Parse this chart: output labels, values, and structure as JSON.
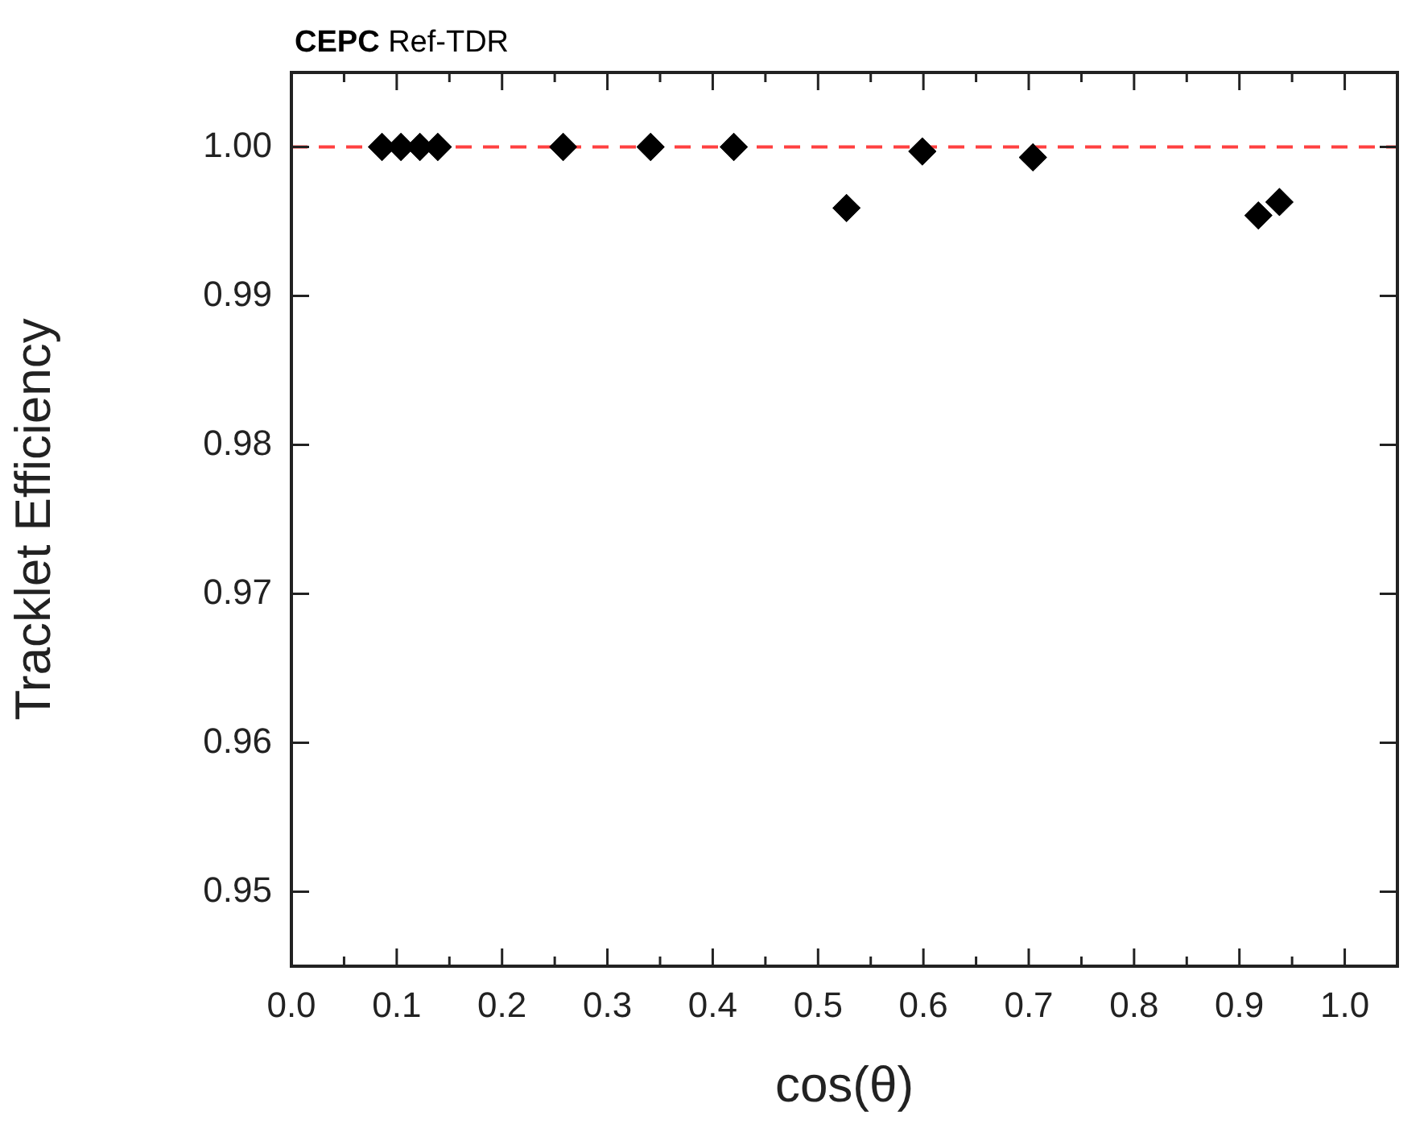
{
  "chart_data": {
    "type": "scatter",
    "title": "CEPC Ref-TDR",
    "xlabel": "cos(θ)",
    "ylabel": "Tracklet Efficiency",
    "x": [
      0.086,
      0.104,
      0.122,
      0.139,
      0.258,
      0.341,
      0.42,
      0.527,
      0.599,
      0.704,
      0.918,
      0.938
    ],
    "series": [
      {
        "color": "#000000",
        "values": [
          1.0,
          1.0,
          1.0,
          1.0,
          1.0,
          1.0,
          1.0,
          0.9959,
          0.9997,
          0.9993,
          0.9954,
          0.9963
        ]
      }
    ],
    "marker": "diamond",
    "grid": false,
    "legend": false,
    "xlim": [
      0,
      1.05
    ],
    "xticks": [
      {
        "value": 0,
        "label": "0.0"
      },
      {
        "value": 0.05,
        "label": null
      },
      {
        "value": 0.1,
        "label": "0.1"
      },
      {
        "value": 0.15,
        "label": null
      },
      {
        "value": 0.2,
        "label": "0.2"
      },
      {
        "value": 0.25,
        "label": null
      },
      {
        "value": 0.3,
        "label": "0.3"
      },
      {
        "value": 0.35,
        "label": null
      },
      {
        "value": 0.4,
        "label": "0.4"
      },
      {
        "value": 0.45,
        "label": null
      },
      {
        "value": 0.5,
        "label": "0.5"
      },
      {
        "value": 0.55,
        "label": null
      },
      {
        "value": 0.6,
        "label": "0.6"
      },
      {
        "value": 0.65,
        "label": null
      },
      {
        "value": 0.7,
        "label": "0.7"
      },
      {
        "value": 0.75,
        "label": null
      },
      {
        "value": 0.8,
        "label": "0.8"
      },
      {
        "value": 0.85,
        "label": null
      },
      {
        "value": 0.9,
        "label": "0.9"
      },
      {
        "value": 0.95,
        "label": null
      },
      {
        "value": 1.0,
        "label": "1.0"
      }
    ],
    "ylim": [
      0.945,
      1.005
    ],
    "yticks": [
      {
        "value": 0.95,
        "label": "0.95"
      },
      {
        "value": 0.96,
        "label": "0.96"
      },
      {
        "value": 0.97,
        "label": "0.97"
      },
      {
        "value": 0.98,
        "label": "0.98"
      },
      {
        "value": 0.99,
        "label": "0.99"
      },
      {
        "value": 1.0,
        "label": "1.00"
      }
    ],
    "ref_lines": [
      {
        "axis": "y",
        "value": 1.0,
        "color": "#ff4040",
        "line_style": "dashed"
      }
    ]
  }
}
